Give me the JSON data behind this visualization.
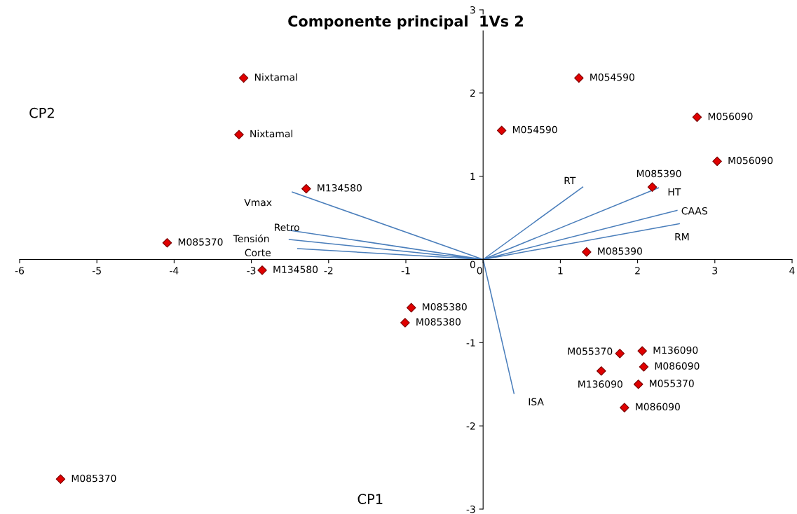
{
  "chart_data": {
    "type": "scatter",
    "title": "Componente principal  1Vs 2",
    "xlabel": "CP1",
    "ylabel": "CP2",
    "xlim": [
      -6,
      4
    ],
    "ylim": [
      -3,
      3
    ],
    "xticks": [
      -6,
      -5,
      -4,
      -3,
      -2,
      -1,
      0,
      1,
      2,
      3,
      4
    ],
    "yticks": [
      -3,
      -2,
      -1,
      0,
      1,
      2,
      3
    ],
    "grid": false,
    "legend": false,
    "series": [
      {
        "color": "#e00000",
        "marker": "diamond",
        "x": [
          -3.1,
          -3.16,
          -2.29,
          -4.09,
          -2.86,
          -0.93,
          -1.01,
          -5.47,
          1.24,
          0.24,
          2.77,
          3.03,
          2.19,
          1.34,
          1.77,
          2.06,
          2.08,
          1.53,
          2.01,
          1.83
        ],
        "values": [
          2.18,
          1.5,
          0.85,
          0.2,
          -0.13,
          -0.58,
          -0.76,
          -2.64,
          2.18,
          1.55,
          1.71,
          1.18,
          0.87,
          0.09,
          -1.13,
          -1.1,
          -1.29,
          -1.34,
          -1.5,
          -1.78
        ]
      },
      {
        "type": "line",
        "color": "#4a7ebb",
        "marker": "none",
        "x": [
          0,
          -2.47,
          null,
          0,
          -2.5,
          null,
          0,
          -2.51,
          null,
          0,
          -2.4,
          null,
          0,
          1.29,
          null,
          0,
          2.27,
          null,
          0,
          2.51,
          null,
          0,
          2.54,
          null,
          0,
          0.4
        ],
        "values": [
          0,
          0.81,
          null,
          0,
          0.35,
          null,
          0,
          0.24,
          null,
          0,
          0.13,
          null,
          0,
          0.87,
          null,
          0,
          0.86,
          null,
          0,
          0.59,
          null,
          0,
          0.43,
          null,
          0,
          -1.61
        ]
      }
    ],
    "annotations": [
      {
        "text": "Nixtamal",
        "x": -3.1,
        "y": 2.18
      },
      {
        "text": "Nixtamal",
        "x": -3.16,
        "y": 1.5
      },
      {
        "text": "M134580",
        "x": -2.29,
        "y": 0.85
      },
      {
        "text": "M085370",
        "x": -4.09,
        "y": 0.2
      },
      {
        "text": "M134580",
        "x": -2.86,
        "y": -0.13
      },
      {
        "text": "M085380",
        "x": -0.93,
        "y": -0.58
      },
      {
        "text": "M085380",
        "x": -1.01,
        "y": -0.76
      },
      {
        "text": "M085370",
        "x": -5.47,
        "y": -2.64
      },
      {
        "text": "M054590",
        "x": 1.24,
        "y": 2.18
      },
      {
        "text": "M054590",
        "x": 0.24,
        "y": 1.55
      },
      {
        "text": "M056090",
        "x": 2.77,
        "y": 1.71
      },
      {
        "text": "M056090",
        "x": 3.03,
        "y": 1.18
      },
      {
        "text": "M085390",
        "x": 2.19,
        "y": 0.87
      },
      {
        "text": "M085390",
        "x": 1.34,
        "y": 0.09
      },
      {
        "text": "M055370",
        "x": 1.77,
        "y": -1.13
      },
      {
        "text": "M136090",
        "x": 2.06,
        "y": -1.1
      },
      {
        "text": "M086090",
        "x": 2.08,
        "y": -1.29
      },
      {
        "text": "M136090",
        "x": 1.53,
        "y": -1.34
      },
      {
        "text": "M055370",
        "x": 2.01,
        "y": -1.5
      },
      {
        "text": "M086090",
        "x": 1.83,
        "y": -1.78
      },
      {
        "text": "Vmax",
        "x": -2.47,
        "y": 0.81
      },
      {
        "text": "Retro",
        "x": -2.5,
        "y": 0.35
      },
      {
        "text": "Tensión",
        "x": -2.51,
        "y": 0.24
      },
      {
        "text": "Corte",
        "x": -2.4,
        "y": 0.13
      },
      {
        "text": "RT",
        "x": 1.29,
        "y": 0.87
      },
      {
        "text": "HT",
        "x": 2.27,
        "y": 0.86
      },
      {
        "text": "CAAS",
        "x": 2.51,
        "y": 0.59
      },
      {
        "text": "RM",
        "x": 2.54,
        "y": 0.43
      },
      {
        "text": "ISA",
        "x": 0.4,
        "y": -1.61
      }
    ]
  }
}
